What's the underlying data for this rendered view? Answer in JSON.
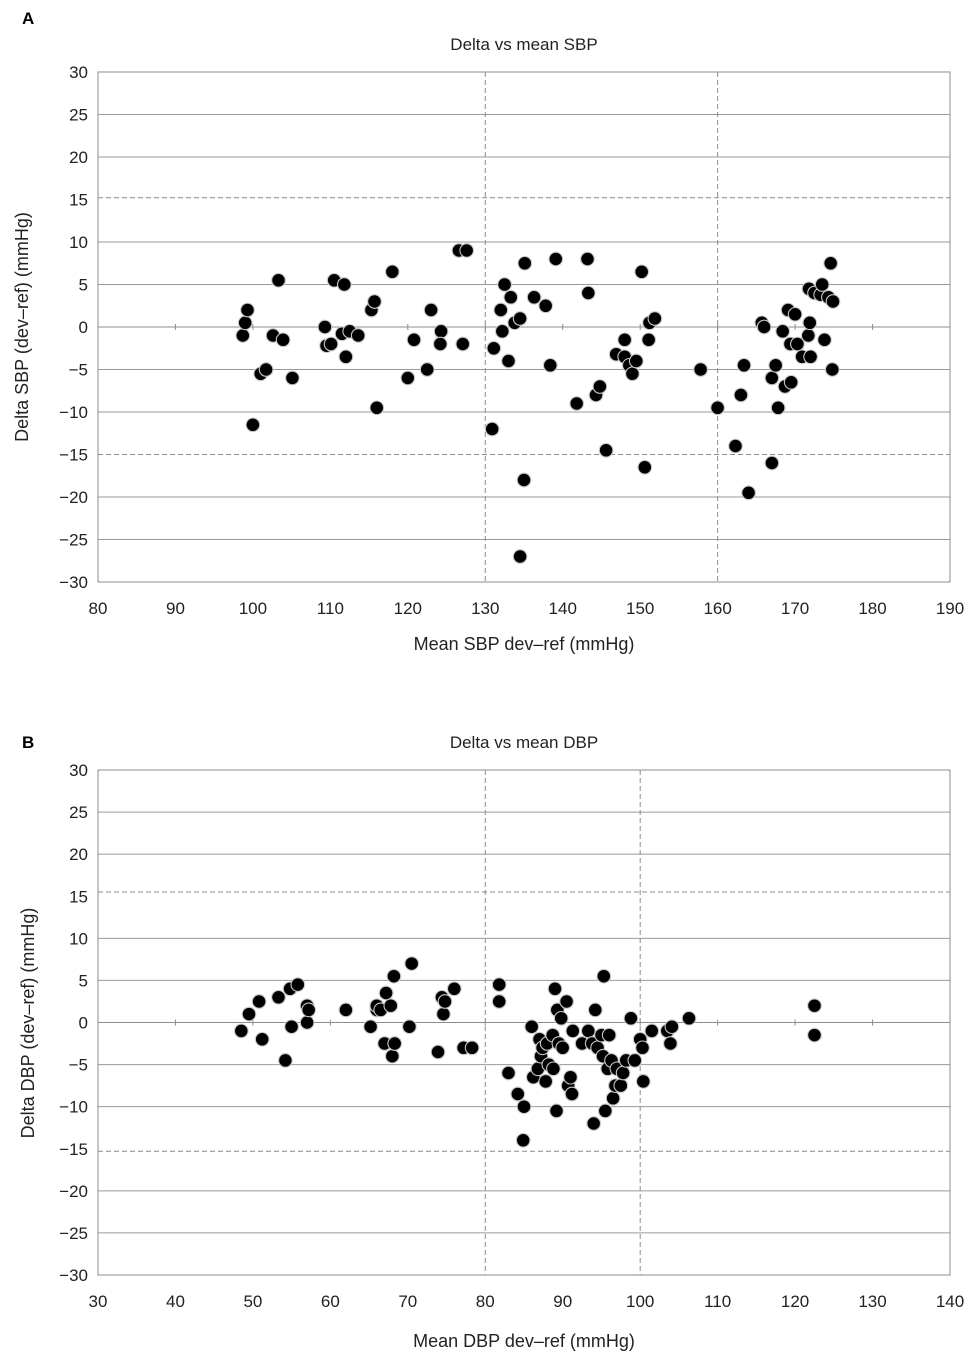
{
  "chart_data": [
    {
      "panel": "A",
      "type": "scatter",
      "title": "Delta vs mean SBP",
      "xlabel": "Mean SBP dev–ref (mmHg)",
      "ylabel": "Delta SBP (dev–ref) (mmHg)",
      "xlim": [
        80,
        190
      ],
      "ylim": [
        -30,
        30
      ],
      "xticks": [
        80,
        90,
        100,
        110,
        120,
        130,
        140,
        150,
        160,
        170,
        180,
        190
      ],
      "yticks": [
        30,
        25,
        20,
        15,
        10,
        5,
        0,
        -5,
        -10,
        -15,
        -20,
        -25,
        -30
      ],
      "ytick_labels": [
        "30",
        "25",
        "20",
        "15",
        "10",
        "5",
        "0",
        "−5",
        "−10",
        "−15",
        "−20",
        "−25",
        "−30"
      ],
      "grid": "horizontal",
      "limit_lines_y": [
        15.2,
        -15.0
      ],
      "vertical_dashed_x": [
        130,
        160
      ],
      "marker_color": "#000000",
      "points": [
        [
          98.7,
          -1
        ],
        [
          99.0,
          0.5
        ],
        [
          99.3,
          2
        ],
        [
          100.0,
          -11.5
        ],
        [
          101.0,
          -5.5
        ],
        [
          101.7,
          -5
        ],
        [
          102.6,
          -1
        ],
        [
          103.3,
          5.5
        ],
        [
          103.9,
          -1.5
        ],
        [
          105.1,
          -6
        ],
        [
          109.3,
          0
        ],
        [
          109.5,
          -2.2
        ],
        [
          110.1,
          -2
        ],
        [
          110.5,
          5.5
        ],
        [
          111.5,
          -0.8
        ],
        [
          111.8,
          5
        ],
        [
          112.0,
          -3.5
        ],
        [
          112.5,
          -0.5
        ],
        [
          113.6,
          -1
        ],
        [
          115.3,
          2
        ],
        [
          115.7,
          3
        ],
        [
          116.0,
          -9.5
        ],
        [
          118.0,
          6.5
        ],
        [
          120.0,
          -6
        ],
        [
          120.8,
          -1.5
        ],
        [
          122.5,
          -5
        ],
        [
          123.0,
          2
        ],
        [
          124.3,
          -0.5
        ],
        [
          124.2,
          -2
        ],
        [
          126.6,
          9
        ],
        [
          127.6,
          9
        ],
        [
          127.1,
          -2
        ],
        [
          131.1,
          -2.5
        ],
        [
          130.9,
          -12
        ],
        [
          132.0,
          2
        ],
        [
          132.2,
          -0.5
        ],
        [
          132.5,
          5
        ],
        [
          133.0,
          -4
        ],
        [
          133.3,
          3.5
        ],
        [
          133.8,
          0.5
        ],
        [
          134.5,
          1
        ],
        [
          135.0,
          -18
        ],
        [
          135.1,
          7.5
        ],
        [
          134.5,
          -27
        ],
        [
          136.3,
          3.5
        ],
        [
          137.8,
          2.5
        ],
        [
          138.4,
          -4.5
        ],
        [
          139.1,
          8
        ],
        [
          141.8,
          -9
        ],
        [
          143.2,
          8
        ],
        [
          143.3,
          4
        ],
        [
          144.3,
          -8
        ],
        [
          144.8,
          -7
        ],
        [
          145.6,
          -14.5
        ],
        [
          146.9,
          -3.2
        ],
        [
          148.0,
          -3.5
        ],
        [
          148.0,
          -1.5
        ],
        [
          148.6,
          -4.5
        ],
        [
          149.0,
          -5.5
        ],
        [
          149.5,
          -4
        ],
        [
          150.2,
          6.5
        ],
        [
          150.6,
          -16.5
        ],
        [
          151.1,
          -1.5
        ],
        [
          151.2,
          0.5
        ],
        [
          151.9,
          1
        ],
        [
          157.8,
          -5
        ],
        [
          160.0,
          -9.5
        ],
        [
          162.3,
          -14
        ],
        [
          163.0,
          -8
        ],
        [
          163.4,
          -4.5
        ],
        [
          164.0,
          -19.5
        ],
        [
          165.7,
          0.5
        ],
        [
          166.0,
          0
        ],
        [
          167.0,
          -16
        ],
        [
          167.0,
          -6
        ],
        [
          167.5,
          -4.5
        ],
        [
          167.8,
          -9.5
        ],
        [
          168.4,
          -0.5
        ],
        [
          168.7,
          -7
        ],
        [
          169.1,
          2
        ],
        [
          169.4,
          -2
        ],
        [
          169.5,
          -6.5
        ],
        [
          170.0,
          1.5
        ],
        [
          170.3,
          -2
        ],
        [
          170.9,
          -3.5
        ],
        [
          171.7,
          -1
        ],
        [
          171.9,
          0.5
        ],
        [
          172.0,
          -3.5
        ],
        [
          171.8,
          4.5
        ],
        [
          172.5,
          4
        ],
        [
          173.3,
          3.8
        ],
        [
          173.5,
          5
        ],
        [
          173.8,
          -1.5
        ],
        [
          174.3,
          3.5
        ],
        [
          174.6,
          7.5
        ],
        [
          174.9,
          3
        ],
        [
          174.8,
          -5
        ]
      ]
    },
    {
      "panel": "B",
      "type": "scatter",
      "title": "Delta vs mean DBP",
      "xlabel": "Mean DBP dev–ref (mmHg)",
      "ylabel": "Delta DBP (dev–ref) (mmHg)",
      "xlim": [
        30,
        140
      ],
      "ylim": [
        -30,
        30
      ],
      "xticks": [
        30,
        40,
        50,
        60,
        70,
        80,
        90,
        100,
        110,
        120,
        130,
        140
      ],
      "yticks": [
        30,
        25,
        20,
        15,
        10,
        5,
        0,
        -5,
        -10,
        -15,
        -20,
        -25,
        -30
      ],
      "ytick_labels": [
        "30",
        "25",
        "20",
        "15",
        "10",
        "5",
        "0",
        "−5",
        "−10",
        "−15",
        "−20",
        "−25",
        "−30"
      ],
      "grid": "horizontal",
      "limit_lines_y": [
        15.5,
        -15.3
      ],
      "vertical_dashed_x": [
        80,
        100
      ],
      "marker_color": "#000000",
      "points": [
        [
          48.5,
          -1
        ],
        [
          49.5,
          1
        ],
        [
          50.8,
          2.5
        ],
        [
          51.2,
          -2
        ],
        [
          53.3,
          3
        ],
        [
          54.2,
          -4.5
        ],
        [
          54.8,
          4
        ],
        [
          55.0,
          -0.5
        ],
        [
          55.8,
          4.5
        ],
        [
          57.0,
          2
        ],
        [
          57.0,
          0
        ],
        [
          57.2,
          1.5
        ],
        [
          62.0,
          1.5
        ],
        [
          65.2,
          -0.5
        ],
        [
          66.0,
          1.5
        ],
        [
          66.0,
          2
        ],
        [
          66.5,
          1.5
        ],
        [
          67.0,
          -2.5
        ],
        [
          67.2,
          3.5
        ],
        [
          67.8,
          2
        ],
        [
          68.0,
          -4
        ],
        [
          68.2,
          5.5
        ],
        [
          68.3,
          -2.5
        ],
        [
          70.2,
          -0.5
        ],
        [
          70.5,
          7
        ],
        [
          73.9,
          -3.5
        ],
        [
          74.4,
          3
        ],
        [
          74.6,
          1
        ],
        [
          74.8,
          2.5
        ],
        [
          76.0,
          4
        ],
        [
          77.2,
          -3
        ],
        [
          78.3,
          -3
        ],
        [
          81.8,
          4.5
        ],
        [
          81.8,
          2.5
        ],
        [
          83.0,
          -6
        ],
        [
          84.2,
          -8.5
        ],
        [
          84.9,
          -14
        ],
        [
          85.0,
          -10
        ],
        [
          86.0,
          -0.5
        ],
        [
          86.2,
          -6.5
        ],
        [
          86.8,
          -5.5
        ],
        [
          87.0,
          -2
        ],
        [
          87.2,
          -4
        ],
        [
          87.4,
          -3
        ],
        [
          87.8,
          -7
        ],
        [
          88.0,
          -2.5
        ],
        [
          88.2,
          -5
        ],
        [
          88.7,
          -1.5
        ],
        [
          88.8,
          -5.5
        ],
        [
          89.0,
          4
        ],
        [
          89.2,
          -10.5
        ],
        [
          89.3,
          1.5
        ],
        [
          89.5,
          -2.5
        ],
        [
          89.8,
          0.5
        ],
        [
          90.0,
          -3
        ],
        [
          90.5,
          2.5
        ],
        [
          90.7,
          -7.5
        ],
        [
          91.0,
          -6.5
        ],
        [
          91.2,
          -8.5
        ],
        [
          91.3,
          -1
        ],
        [
          92.5,
          -2.5
        ],
        [
          93.3,
          -1
        ],
        [
          93.8,
          -2.5
        ],
        [
          94.0,
          -12
        ],
        [
          94.2,
          1.5
        ],
        [
          94.5,
          -3
        ],
        [
          95.0,
          -1.5
        ],
        [
          95.2,
          -4
        ],
        [
          95.3,
          5.5
        ],
        [
          95.5,
          -10.5
        ],
        [
          95.8,
          -5.5
        ],
        [
          96.0,
          -1.5
        ],
        [
          96.3,
          -4.5
        ],
        [
          96.5,
          -9
        ],
        [
          96.8,
          -7.5
        ],
        [
          97.0,
          -5.5
        ],
        [
          97.5,
          -7.5
        ],
        [
          97.8,
          -6
        ],
        [
          98.2,
          -4.5
        ],
        [
          98.8,
          0.5
        ],
        [
          99.3,
          -4.5
        ],
        [
          100.0,
          -2
        ],
        [
          100.3,
          -3
        ],
        [
          100.4,
          -7
        ],
        [
          101.5,
          -1
        ],
        [
          103.5,
          -1
        ],
        [
          103.9,
          -2.5
        ],
        [
          104.1,
          -0.5
        ],
        [
          106.3,
          0.5
        ],
        [
          122.5,
          2
        ],
        [
          122.5,
          -1.5
        ]
      ]
    }
  ]
}
